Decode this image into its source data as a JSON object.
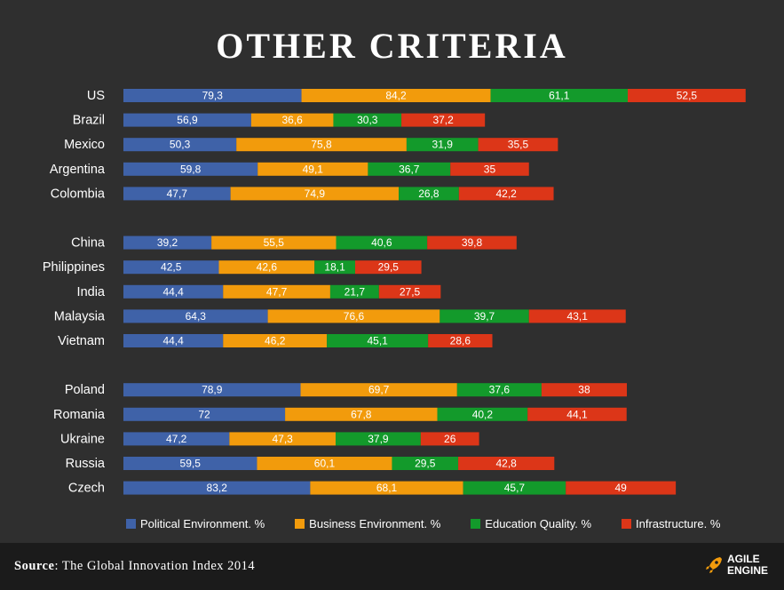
{
  "chart_data": {
    "type": "bar",
    "orientation": "horizontal",
    "stacked": true,
    "title": "OTHER CRITERIA",
    "groups": [
      [
        "US",
        "Brazil",
        "Mexico",
        "Argentina",
        "Colombia"
      ],
      [
        "China",
        "Philippines",
        "India",
        "Malaysia",
        "Vietnam"
      ],
      [
        "Poland",
        "Romania",
        "Ukraine",
        "Russia",
        "Czech"
      ]
    ],
    "categories": [
      "US",
      "Brazil",
      "Mexico",
      "Argentina",
      "Colombia",
      "China",
      "Philippines",
      "India",
      "Malaysia",
      "Vietnam",
      "Poland",
      "Romania",
      "Ukraine",
      "Russia",
      "Czech"
    ],
    "series": [
      {
        "name": "Political Environment. %",
        "color": "#3f62a8",
        "values": [
          79.3,
          56.9,
          50.3,
          59.8,
          47.7,
          39.2,
          42.5,
          44.4,
          64.3,
          44.4,
          78.9,
          72,
          47.2,
          59.5,
          83.2
        ],
        "labels": [
          "79,3",
          "56,9",
          "50,3",
          "59,8",
          "47,7",
          "39,2",
          "42,5",
          "44,4",
          "64,3",
          "44,4",
          "78,9",
          "72",
          "47,2",
          "59,5",
          "83,2"
        ]
      },
      {
        "name": "Business Environment. %",
        "color": "#f29b0c",
        "values": [
          84.2,
          36.6,
          75.8,
          49.1,
          74.9,
          55.5,
          42.6,
          47.7,
          76.6,
          46.2,
          69.7,
          67.8,
          47.3,
          60.1,
          68.1
        ],
        "labels": [
          "84,2",
          "36,6",
          "75,8",
          "49,1",
          "74,9",
          "55,5",
          "42,6",
          "47,7",
          "76,6",
          "46,2",
          "69,7",
          "67,8",
          "47,3",
          "60,1",
          "68,1"
        ]
      },
      {
        "name": "Education Quality. %",
        "color": "#139a2b",
        "values": [
          61.1,
          30.3,
          31.9,
          36.7,
          26.8,
          40.6,
          18.1,
          21.7,
          39.7,
          45.1,
          37.6,
          40.2,
          37.9,
          29.5,
          45.7
        ],
        "labels": [
          "61,1",
          "30,3",
          "31,9",
          "36,7",
          "26,8",
          "40,6",
          "18,1",
          "21,7",
          "39,7",
          "45,1",
          "37,6",
          "40,2",
          "37,9",
          "29,5",
          "45,7"
        ]
      },
      {
        "name": "Infrastructure. %",
        "color": "#dc3618",
        "values": [
          52.5,
          37.2,
          35.5,
          35,
          42.2,
          39.8,
          29.5,
          27.5,
          43.1,
          28.6,
          38,
          44.1,
          26,
          42.8,
          49
        ],
        "labels": [
          "52,5",
          "37,2",
          "35,5",
          "35",
          "42,2",
          "39,8",
          "29,5",
          "27,5",
          "43,1",
          "28,6",
          "38",
          "44,1",
          "26",
          "42,8",
          "49"
        ]
      }
    ],
    "legend_position": "bottom",
    "grid": false
  },
  "footer": {
    "source_label": "Source",
    "source_text": ": The Global Innovation Index 2014",
    "logo_line1": "AGILE",
    "logo_line2": "ENGINE"
  },
  "colors": {
    "background": "#2f2f2f",
    "footer": "#1b1b1b",
    "logo_accent": "#f29b0c"
  }
}
